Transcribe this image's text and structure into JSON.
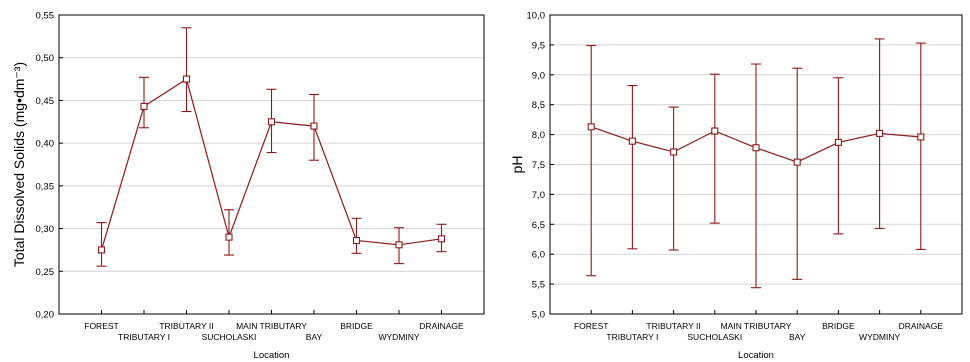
{
  "chart_data": [
    {
      "type": "line",
      "xlabel": "Location",
      "ylabel": "Total Dissolved Solids (mg•dm⁻³)",
      "ylim": [
        0.2,
        0.55
      ],
      "yticks": [
        "0,20",
        "0,25",
        "0,30",
        "0,35",
        "0,40",
        "0,45",
        "0,50",
        "0,55"
      ],
      "grid": true,
      "categories": [
        "FOREST",
        "TRIBUTARY I",
        "TRIBUTARY II",
        "SUCHOLASKI",
        "MAIN TRIBUTARY",
        "BAY",
        "BRIDGE",
        "WYDMINY",
        "DRAINAGE"
      ],
      "values": [
        0.275,
        0.443,
        0.475,
        0.29,
        0.425,
        0.42,
        0.286,
        0.281,
        0.288
      ],
      "error_low": [
        0.256,
        0.418,
        0.437,
        0.269,
        0.389,
        0.38,
        0.271,
        0.259,
        0.273
      ],
      "error_high": [
        0.307,
        0.477,
        0.535,
        0.322,
        0.463,
        0.457,
        0.312,
        0.301,
        0.305
      ]
    },
    {
      "type": "line",
      "xlabel": "Location",
      "ylabel": "pH",
      "ylim": [
        5.0,
        10.0
      ],
      "yticks": [
        "5,0",
        "5,5",
        "6,0",
        "6,5",
        "7,0",
        "7,5",
        "8,0",
        "8,5",
        "9,0",
        "9,5",
        "10,0"
      ],
      "grid": true,
      "categories": [
        "FOREST",
        "TRIBUTARY I",
        "TRIBUTARY II",
        "SUCHOLASKI",
        "MAIN TRIBUTARY",
        "BAY",
        "BRIDGE",
        "WYDMINY",
        "DRAINAGE"
      ],
      "values": [
        8.13,
        7.89,
        7.71,
        8.06,
        7.78,
        7.54,
        7.87,
        8.02,
        7.96
      ],
      "error_low": [
        5.64,
        6.09,
        6.07,
        6.52,
        5.44,
        5.58,
        6.34,
        6.43,
        6.08
      ],
      "error_high": [
        9.49,
        8.82,
        8.46,
        9.01,
        9.18,
        9.11,
        8.95,
        9.6,
        9.53
      ]
    }
  ],
  "series_color": "#8b1a1a"
}
